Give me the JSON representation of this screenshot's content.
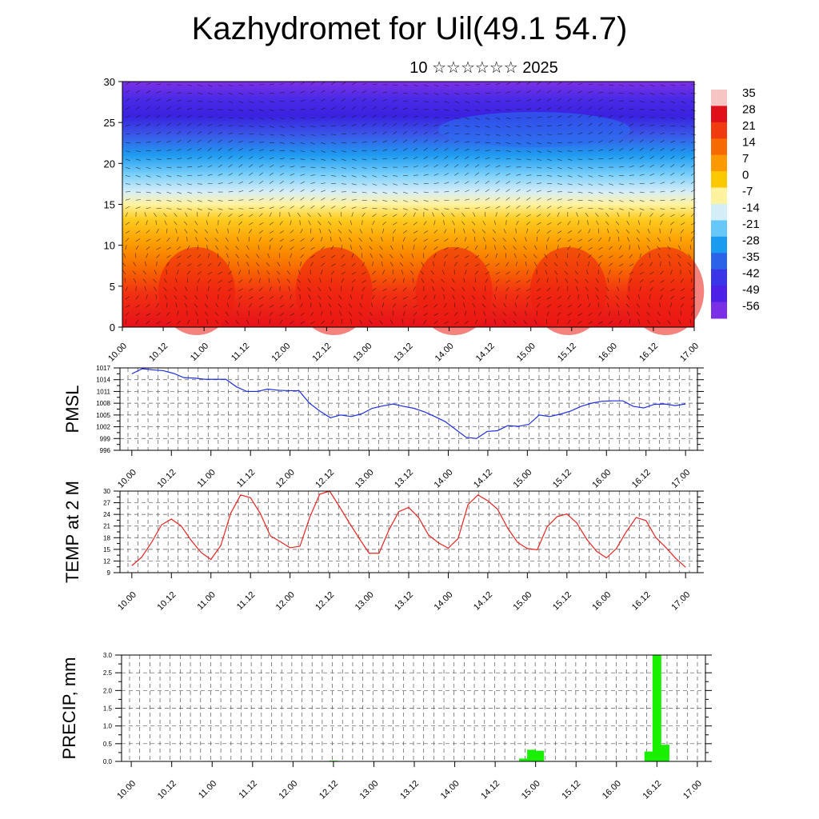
{
  "page": {
    "title": "Kazhydromet for Uil(49.1 54.7)",
    "subtitle": "10 ☆☆☆☆☆☆ 2025"
  },
  "colors": {
    "pmsl": "#1f2fe0",
    "temp": "#e8231f",
    "precip": "#18f000",
    "grid": "#555555"
  },
  "chart_data": [
    {
      "type": "heatmap",
      "title": "",
      "ylim": [
        0,
        30
      ],
      "y_ticks": [
        "0",
        "5",
        "10",
        "15",
        "20",
        "25",
        "30"
      ],
      "x_ticks": [
        "10.00",
        "10.12",
        "11.00",
        "11.12",
        "12.00",
        "12.12",
        "13.00",
        "13.12",
        "14.00",
        "14.12",
        "15.00",
        "15.12",
        "16.00",
        "16.12",
        "17.00"
      ],
      "colorbar_labels": [
        "35",
        "28",
        "21",
        "14",
        "7",
        "0",
        "-7",
        "-14",
        "-21",
        "-28",
        "-35",
        "-42",
        "-49",
        "-56"
      ],
      "colorbar_colors": [
        "#f7c4c4",
        "#e0101a",
        "#f03a10",
        "#f76a00",
        "#fb9a00",
        "#fcc800",
        "#fff3a0",
        "#d4eef8",
        "#66c8f8",
        "#1a9bf0",
        "#2a62e8",
        "#3a35e6",
        "#4c20e6",
        "#7a2ee6"
      ],
      "vectors": true
    },
    {
      "type": "line",
      "ylabel": "PMSL",
      "ylim": [
        996,
        1017
      ],
      "y_ticks": [
        "996",
        "999",
        "1002",
        "1005",
        "1008",
        "1011",
        "1014",
        "1017"
      ],
      "x_ticks": [
        "10.00",
        "10.12",
        "11.00",
        "11.12",
        "12.00",
        "12.12",
        "13.00",
        "13.12",
        "14.00",
        "14.12",
        "15.00",
        "15.12",
        "16.00",
        "16.12",
        "17.00"
      ],
      "series": [
        {
          "values": [
            1015.5,
            1016.8,
            1016.5,
            1016.3,
            1015.6,
            1014.5,
            1014.4,
            1014.1,
            1014.1,
            1014.1,
            1012.2,
            1011.0,
            1011.0,
            1011.6,
            1011.3,
            1011.2,
            1011.2,
            1008.0,
            1006.0,
            1004.3,
            1005.0,
            1004.6,
            1005.3,
            1006.7,
            1007.3,
            1007.8,
            1007.2,
            1006.7,
            1005.8,
            1004.6,
            1003.3,
            1001.3,
            999.3,
            999.0,
            1000.8,
            1001.0,
            1002.3,
            1002.1,
            1002.6,
            1005.0,
            1004.6,
            1005.2,
            1006.0,
            1007.2,
            1008.0,
            1008.5,
            1008.6,
            1008.6,
            1007.2,
            1006.8,
            1007.7,
            1007.8,
            1007.4,
            1007.8
          ]
        }
      ]
    },
    {
      "type": "line",
      "ylabel": "TEMP at 2 M",
      "ylim": [
        9,
        30
      ],
      "y_ticks": [
        "9",
        "12",
        "15",
        "18",
        "21",
        "24",
        "27",
        "30"
      ],
      "x_ticks": [
        "10.00",
        "10.12",
        "11.00",
        "11.12",
        "12.00",
        "12.12",
        "13.00",
        "13.12",
        "14.00",
        "14.12",
        "15.00",
        "15.12",
        "16.00",
        "16.12",
        "17.00"
      ],
      "series": [
        {
          "values": [
            10.8,
            13.0,
            16.8,
            21.3,
            22.8,
            21.0,
            17.3,
            14.2,
            12.4,
            16.0,
            24.3,
            29.0,
            28.3,
            24.2,
            18.5,
            17.0,
            15.4,
            15.8,
            23.3,
            29.2,
            30.0,
            26.0,
            21.8,
            17.8,
            14.0,
            14.0,
            20.0,
            24.7,
            25.8,
            23.2,
            18.7,
            16.7,
            15.3,
            17.8,
            26.5,
            29.0,
            27.5,
            25.3,
            20.5,
            16.8,
            15.2,
            14.9,
            20.8,
            23.4,
            24.1,
            21.8,
            17.6,
            14.5,
            12.8,
            15.2,
            19.5,
            23.2,
            22.4,
            18.0,
            15.5,
            12.7,
            10.4
          ]
        }
      ]
    },
    {
      "type": "bar",
      "ylabel": "PRECIP, mm",
      "ylim": [
        0,
        3
      ],
      "y_ticks": [
        "0.0",
        "0.5",
        "1.0",
        "1.5",
        "2.0",
        "2.5",
        "3.0"
      ],
      "x_ticks": [
        "10.00",
        "10.12",
        "11.00",
        "11.12",
        "12.00",
        "12.12",
        "13.00",
        "13.12",
        "14.00",
        "14.12",
        "15.00",
        "15.12",
        "16.00",
        "16.12",
        "17.00"
      ],
      "bars": [
        {
          "x": 12.5,
          "value": 0.02
        },
        {
          "x": 14.85,
          "value": 0.08
        },
        {
          "x": 14.95,
          "value": 0.33
        },
        {
          "x": 15.05,
          "value": 0.3
        },
        {
          "x": 16.4,
          "value": 0.28
        },
        {
          "x": 16.5,
          "value": 3.0
        },
        {
          "x": 16.6,
          "value": 0.47
        }
      ]
    }
  ]
}
